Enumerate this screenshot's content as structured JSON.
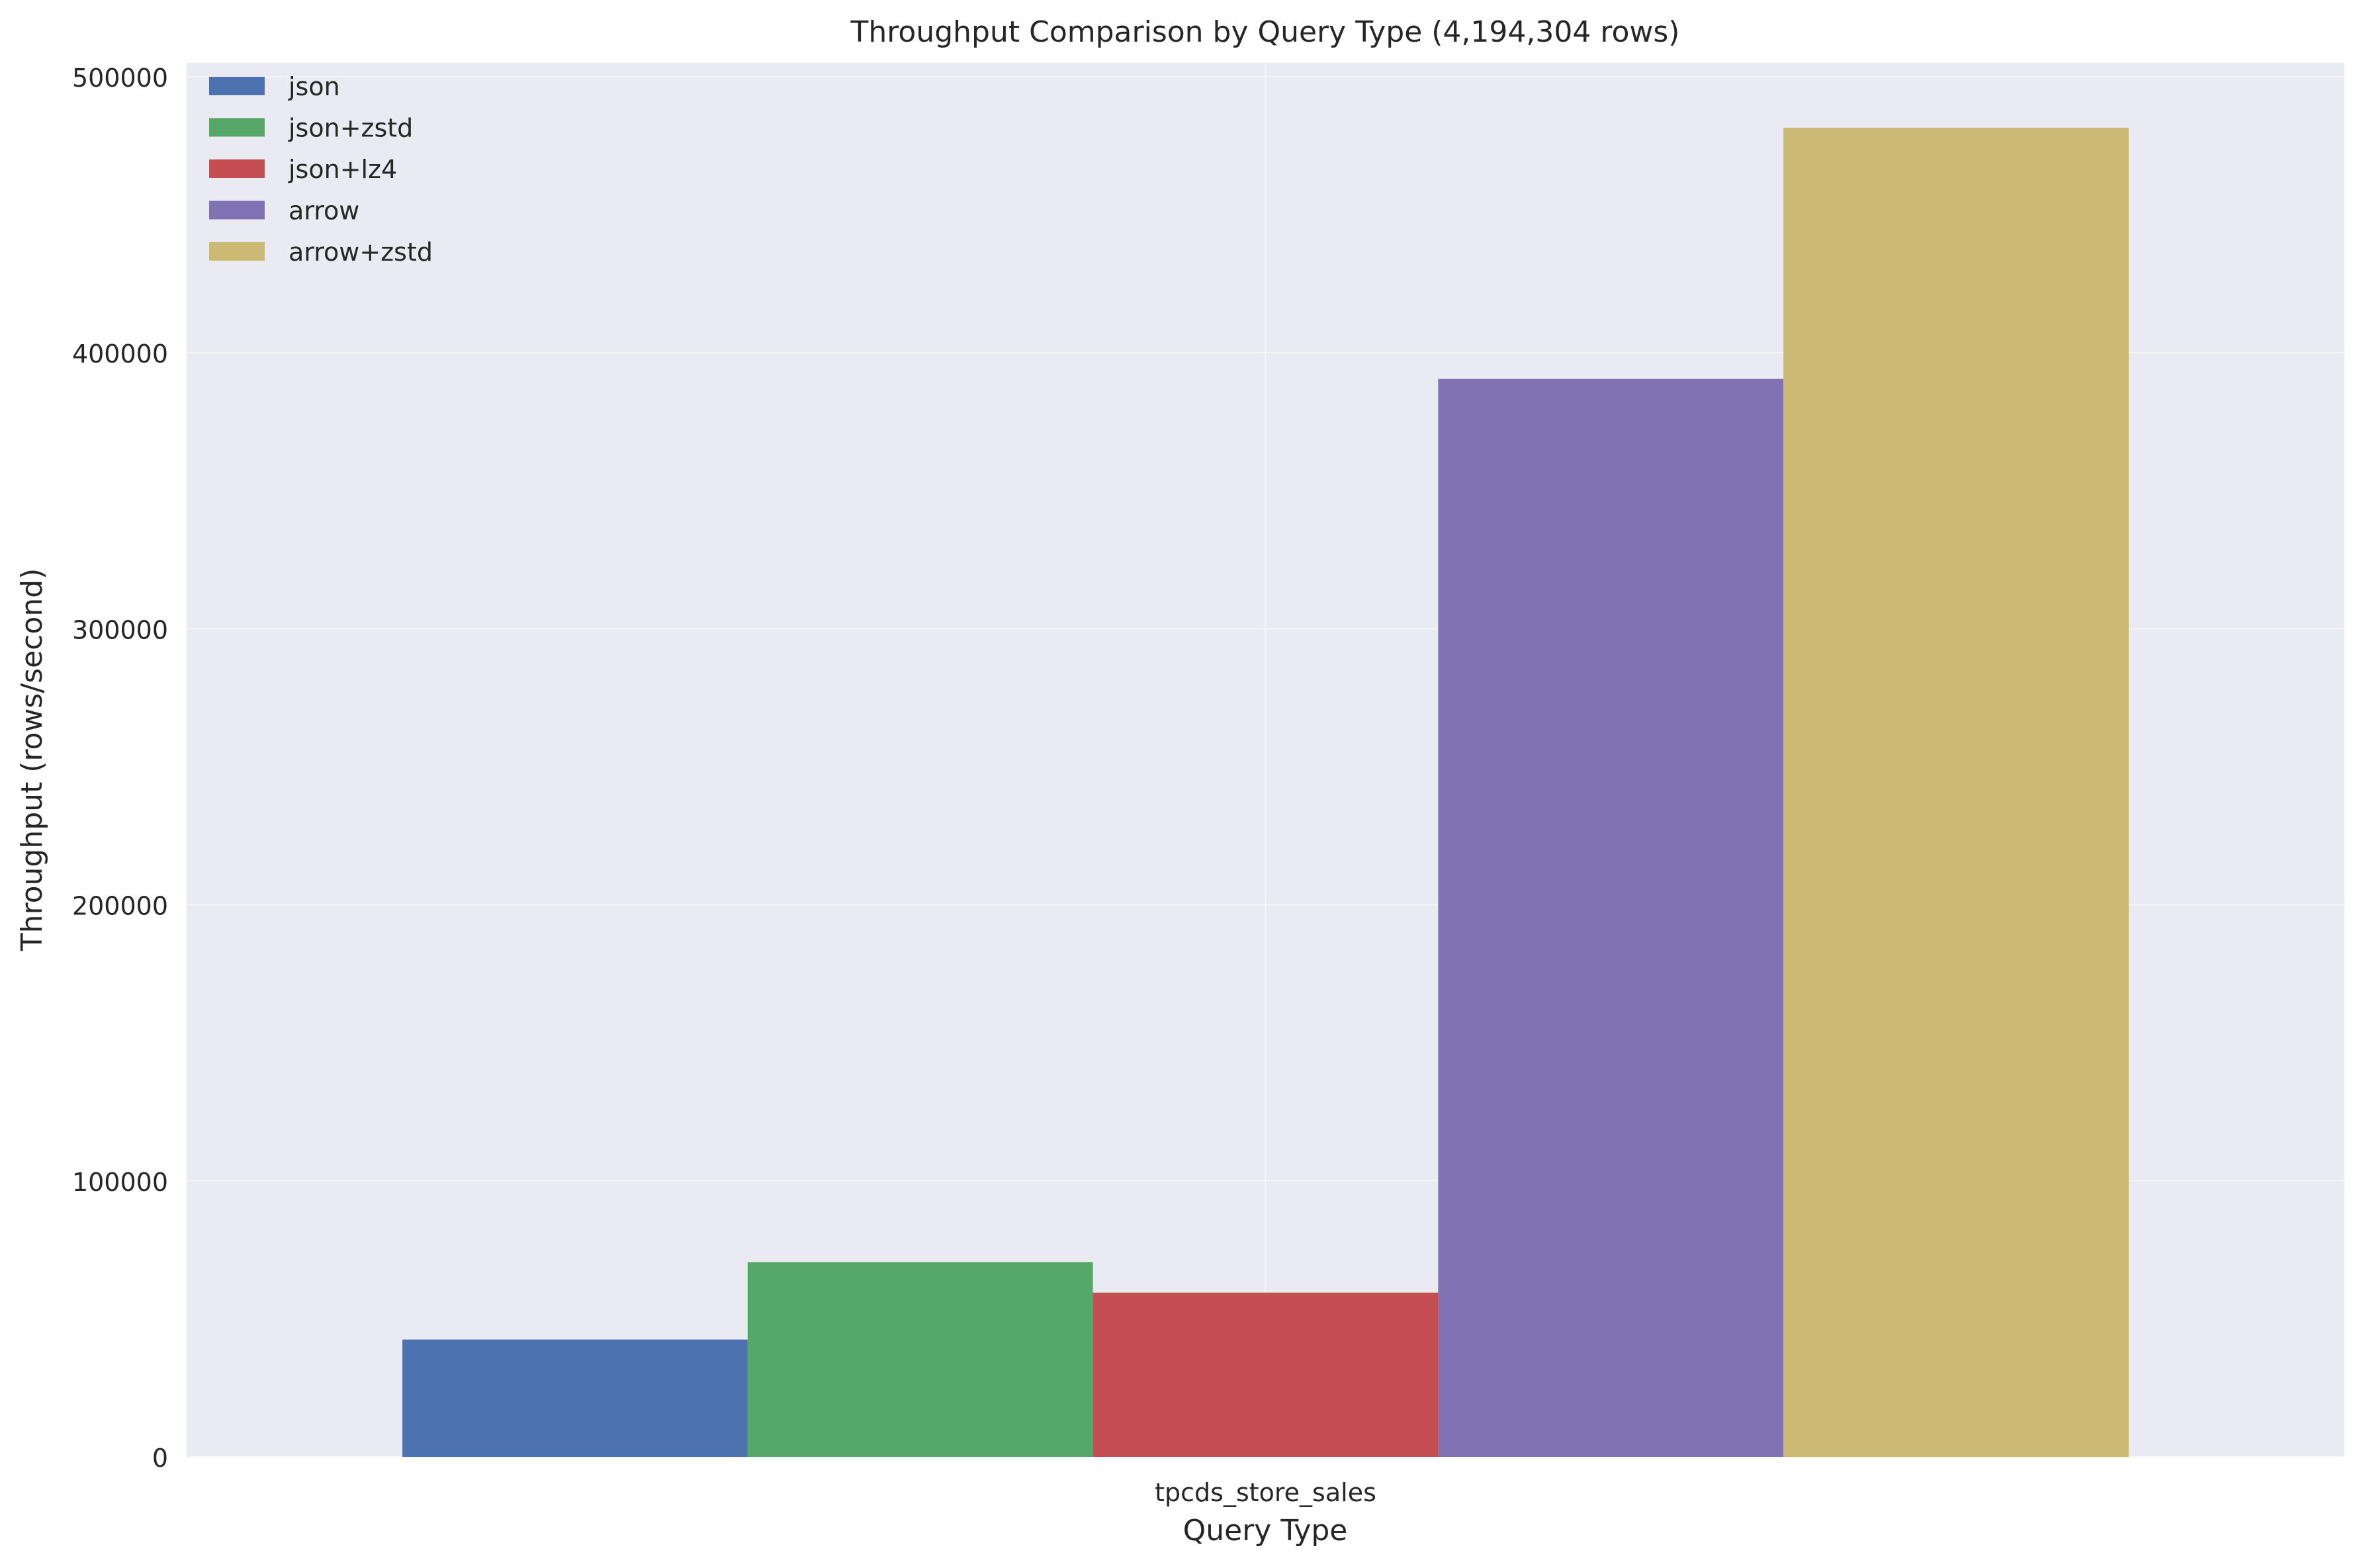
{
  "chart_data": {
    "type": "bar",
    "title": "Throughput Comparison by Query Type (4,194,304 rows)",
    "xlabel": "Query Type",
    "ylabel": "Throughput (rows/second)",
    "categories": [
      "tpcds_store_sales"
    ],
    "series": [
      {
        "name": "json",
        "values": [
          42500
        ],
        "color": "#4c72b0"
      },
      {
        "name": "json+zstd",
        "values": [
          70500
        ],
        "color": "#55a868"
      },
      {
        "name": "json+lz4",
        "values": [
          59500
        ],
        "color": "#c44e52"
      },
      {
        "name": "arrow",
        "values": [
          390500
        ],
        "color": "#8172b3"
      },
      {
        "name": "arrow+zstd",
        "values": [
          481500
        ],
        "color": "#ccb974"
      }
    ],
    "ylim": [
      0,
      505000
    ],
    "yticks": [
      0,
      100000,
      200000,
      300000,
      400000,
      500000
    ],
    "ytick_labels": [
      "0",
      "100000",
      "200000",
      "300000",
      "400000",
      "500000"
    ],
    "grid": true,
    "legend_position": "top-left",
    "background_color": "#eaeaf2",
    "grid_color": "#f5f5f8"
  }
}
